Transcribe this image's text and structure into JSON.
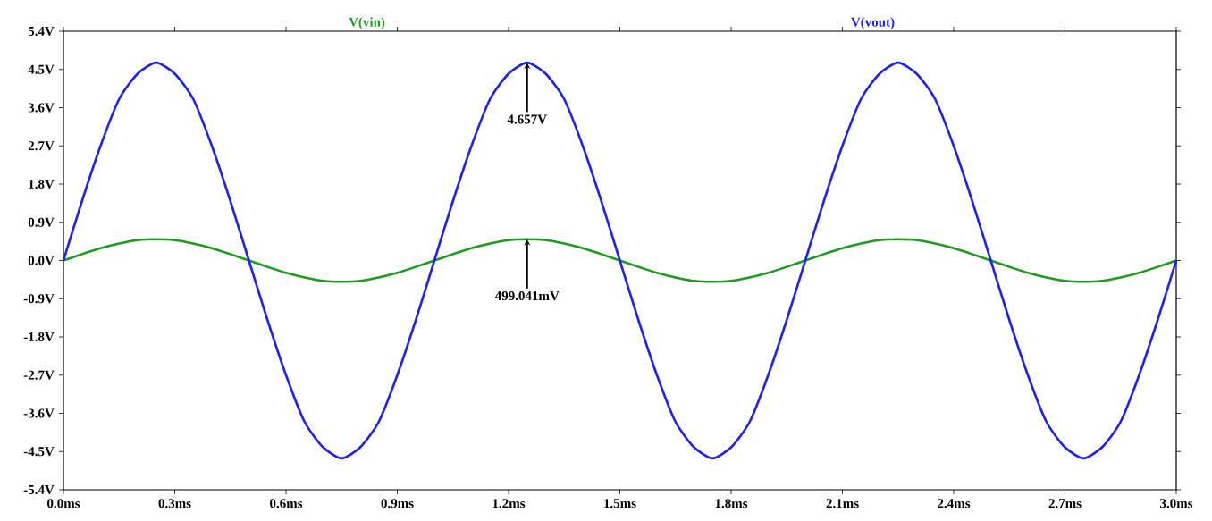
{
  "chart_data": {
    "type": "line",
    "x": [
      0,
      0.05,
      0.1,
      0.15,
      0.2,
      0.25,
      0.3,
      0.35,
      0.4,
      0.45,
      0.5,
      0.55,
      0.6,
      0.65,
      0.7,
      0.75,
      0.8,
      0.85,
      0.9,
      0.95,
      1,
      1.05,
      1.1,
      1.15,
      1.2,
      1.25,
      1.3,
      1.35,
      1.4,
      1.45,
      1.5,
      1.55,
      1.6,
      1.65,
      1.7,
      1.75,
      1.8,
      1.85,
      1.9,
      1.95,
      2,
      2.05,
      2.1,
      2.15,
      2.2,
      2.25,
      2.3,
      2.35,
      2.4,
      2.45,
      2.5,
      2.55,
      2.6,
      2.65,
      2.7,
      2.75,
      2.8,
      2.85,
      2.9,
      2.95,
      3
    ],
    "series": [
      {
        "name": "V(vin)",
        "color": "#1e9a1e",
        "values": [
          0,
          0.15,
          0.29,
          0.4,
          0.48,
          0.5,
          0.48,
          0.4,
          0.29,
          0.15,
          0,
          -0.15,
          -0.29,
          -0.4,
          -0.48,
          -0.5,
          -0.48,
          -0.4,
          -0.29,
          -0.15,
          0,
          0.15,
          0.29,
          0.4,
          0.48,
          0.5,
          0.48,
          0.4,
          0.29,
          0.15,
          0,
          -0.15,
          -0.29,
          -0.4,
          -0.48,
          -0.5,
          -0.48,
          -0.4,
          -0.29,
          -0.15,
          0,
          0.15,
          0.29,
          0.4,
          0.48,
          0.5,
          0.48,
          0.4,
          0.29,
          0.15,
          0,
          -0.15,
          -0.29,
          -0.4,
          -0.48,
          -0.5,
          -0.48,
          -0.4,
          -0.29,
          -0.15,
          0
        ]
      },
      {
        "name": "V(vout)",
        "color": "#1f1ff5",
        "values": [
          0,
          1.4,
          2.7,
          3.8,
          4.4,
          4.66,
          4.4,
          3.8,
          2.7,
          1.4,
          0,
          -1.4,
          -2.7,
          -3.8,
          -4.4,
          -4.66,
          -4.4,
          -3.8,
          -2.7,
          -1.4,
          0,
          1.4,
          2.7,
          3.8,
          4.4,
          4.66,
          4.4,
          3.8,
          2.7,
          1.4,
          0,
          -1.4,
          -2.7,
          -3.8,
          -4.4,
          -4.66,
          -4.4,
          -3.8,
          -2.7,
          -1.4,
          0,
          1.4,
          2.7,
          3.8,
          4.4,
          4.66,
          4.4,
          3.8,
          2.7,
          1.4,
          0,
          -1.4,
          -2.7,
          -3.8,
          -4.4,
          -4.66,
          -4.4,
          -3.8,
          -2.7,
          -1.4,
          0
        ]
      }
    ],
    "xlim": [
      0,
      3
    ],
    "ylim": [
      -5.4,
      5.4
    ],
    "xticks": [
      {
        "value": 0,
        "label": "0.0ms"
      },
      {
        "value": 0.3,
        "label": "0.3ms"
      },
      {
        "value": 0.6,
        "label": "0.6ms"
      },
      {
        "value": 0.9,
        "label": "0.9ms"
      },
      {
        "value": 1.2,
        "label": "1.2ms"
      },
      {
        "value": 1.5,
        "label": "1.5ms"
      },
      {
        "value": 1.8,
        "label": "1.8ms"
      },
      {
        "value": 2.1,
        "label": "2.1ms"
      },
      {
        "value": 2.4,
        "label": "2.4ms"
      },
      {
        "value": 2.7,
        "label": "2.7ms"
      },
      {
        "value": 3,
        "label": "3.0ms"
      }
    ],
    "yticks": [
      {
        "value": -5.4,
        "label": "-5.4V"
      },
      {
        "value": -4.5,
        "label": "-4.5V"
      },
      {
        "value": -3.6,
        "label": "-3.6V"
      },
      {
        "value": -2.7,
        "label": "-2.7V"
      },
      {
        "value": -1.8,
        "label": "-1.8V"
      },
      {
        "value": -0.9,
        "label": "-0.9V"
      },
      {
        "value": 0,
        "label": "0.0V"
      },
      {
        "value": 0.9,
        "label": "0.9V"
      },
      {
        "value": 1.8,
        "label": "1.8V"
      },
      {
        "value": 2.7,
        "label": "2.7V"
      },
      {
        "value": 3.6,
        "label": "3.6V"
      },
      {
        "value": 4.5,
        "label": "4.5V"
      },
      {
        "value": 5.4,
        "label": "5.4V"
      }
    ],
    "annotations": [
      {
        "text": "4.657V",
        "x": 1.25,
        "y": 4.657
      },
      {
        "text": "499.041mV",
        "x": 1.25,
        "y": 0.499
      }
    ],
    "legend": "top",
    "grid": false,
    "marker": "none",
    "line_style": "solid"
  }
}
